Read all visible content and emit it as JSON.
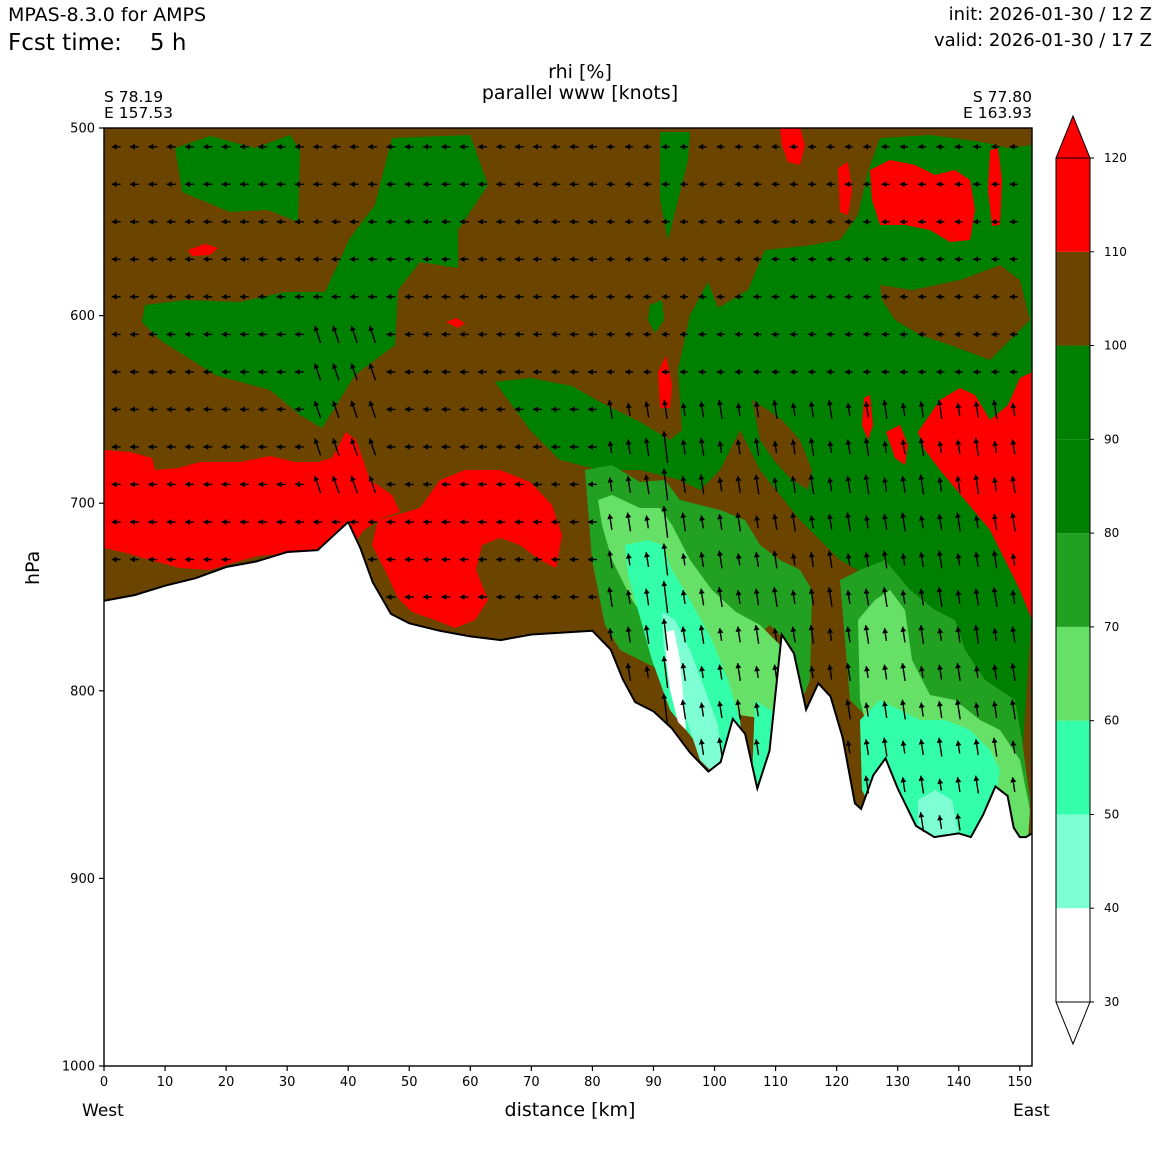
{
  "header": {
    "model": "MPAS-8.3.0 for AMPS",
    "fcst_label": "Fcst time:",
    "fcst_value": "5 h",
    "init": "init: 2026-01-30 / 12 Z",
    "valid": "valid: 2026-01-30 / 17 Z"
  },
  "plot": {
    "title_line1": "rhi [%]",
    "title_line2": "parallel www [knots]",
    "start_lat": "S 78.19",
    "start_lon": "E 157.53",
    "end_lat": "S 77.80",
    "end_lon": "E 163.93",
    "west": "West",
    "east": "East"
  },
  "chart_data": {
    "type": "heatmap",
    "title": "rhi [%]",
    "subtitle": "parallel www [knots]",
    "xlabel": "distance [km]",
    "ylabel": "hPa",
    "xlim": [
      0,
      152
    ],
    "ylim": [
      1000,
      500
    ],
    "xticks": [
      0,
      10,
      20,
      30,
      40,
      50,
      60,
      70,
      80,
      90,
      100,
      110,
      120,
      130,
      140,
      150
    ],
    "yticks": [
      500,
      600,
      700,
      800,
      900,
      1000
    ],
    "colorbar": {
      "levels": [
        30,
        40,
        50,
        60,
        70,
        80,
        90,
        100,
        110,
        120
      ],
      "colors": [
        "#ffffff",
        "#7fffd4",
        "#33ffaa",
        "#66e066",
        "#22a022",
        "#008000",
        "#008000",
        "#6b4500",
        "#ff0000"
      ],
      "extend": "both"
    },
    "terrain_profile": {
      "x": [
        0,
        5,
        10,
        15,
        20,
        25,
        30,
        35,
        38,
        40,
        42,
        44,
        47,
        50,
        55,
        60,
        65,
        70,
        75,
        80,
        83,
        85,
        87,
        90,
        93,
        96,
        99,
        101,
        103,
        105,
        107,
        109,
        111,
        113,
        115,
        117,
        119,
        121,
        123,
        124,
        126,
        128,
        130,
        133,
        136,
        140,
        142,
        144,
        146,
        148,
        149,
        150,
        151,
        152
      ],
      "p": [
        752,
        749,
        744,
        740,
        734,
        731,
        726,
        725,
        716,
        710,
        724,
        742,
        759,
        764,
        768,
        771,
        773,
        770,
        769,
        768,
        778,
        794,
        806,
        811,
        820,
        833,
        843,
        838,
        815,
        823,
        852,
        832,
        770,
        780,
        810,
        796,
        803,
        825,
        860,
        863,
        845,
        836,
        852,
        872,
        878,
        876,
        878,
        866,
        851,
        856,
        873,
        878,
        878,
        876
      ]
    }
  }
}
